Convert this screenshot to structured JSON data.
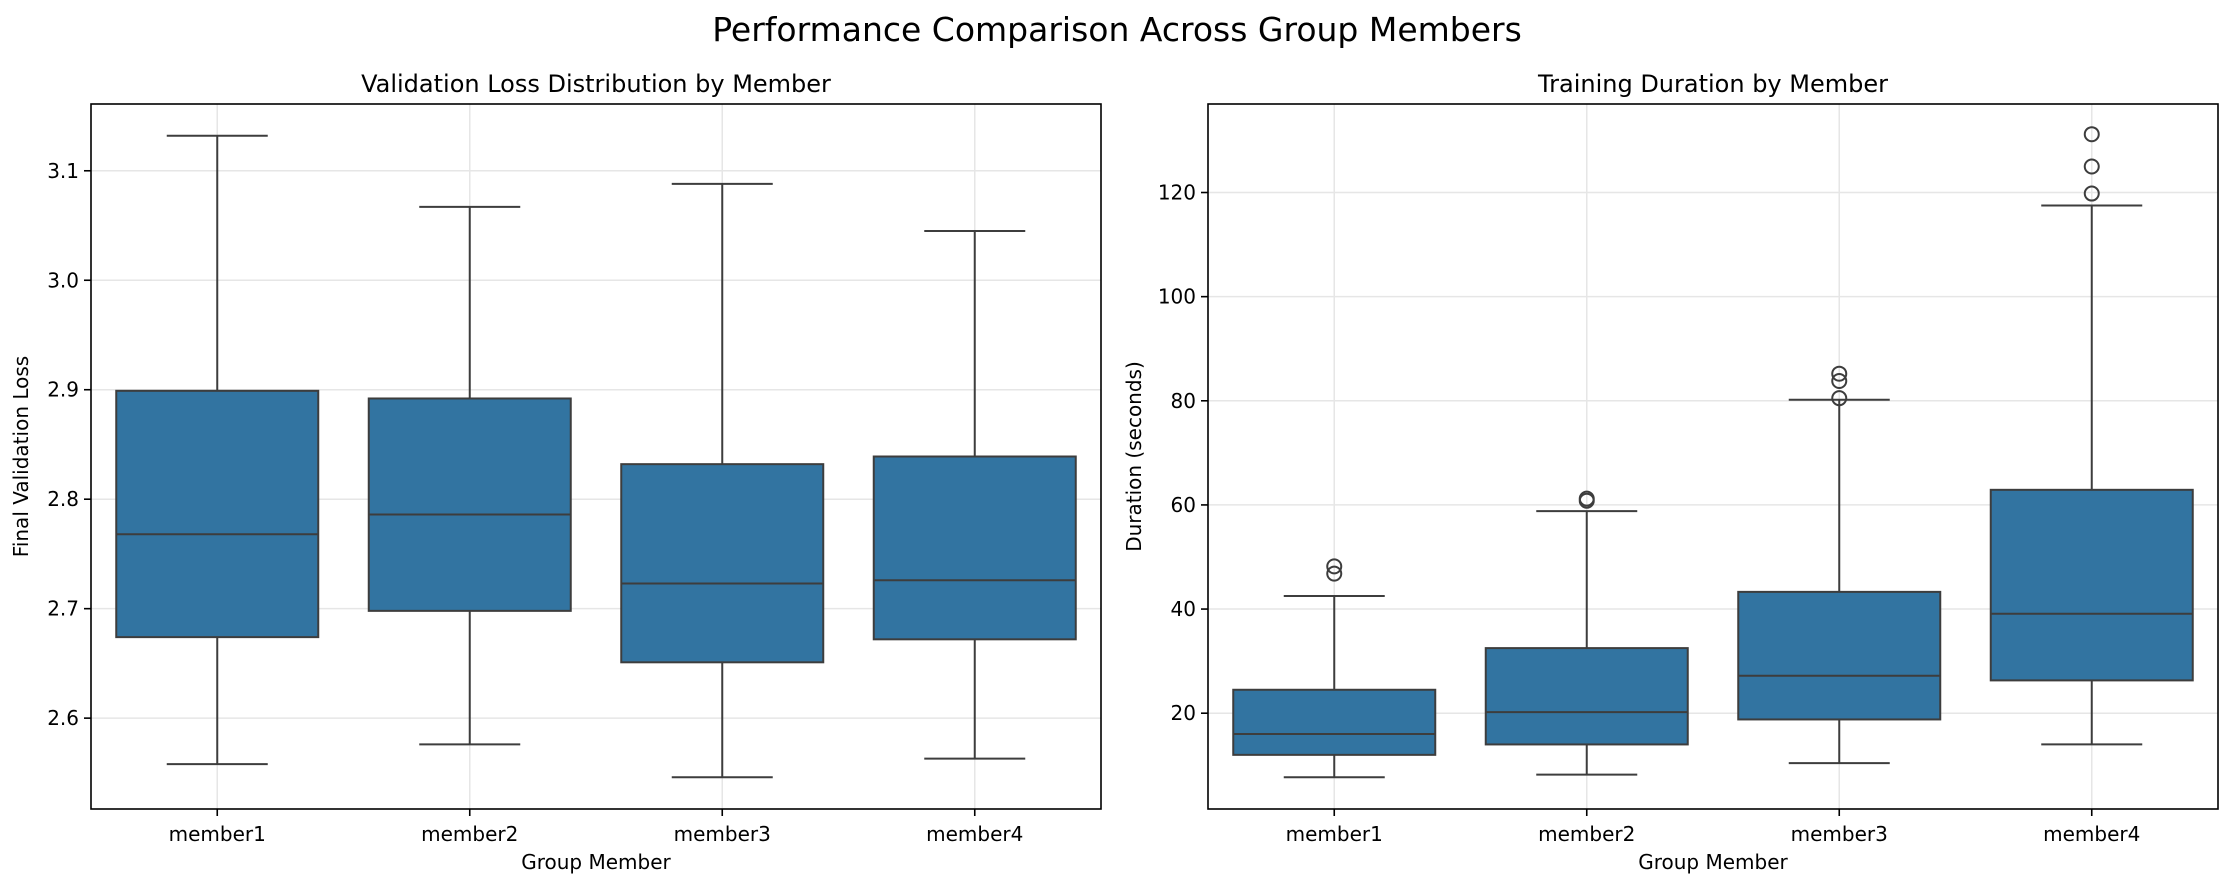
{
  "figure": {
    "title": "Performance Comparison Across Group Members"
  },
  "colors": {
    "box_fill": "#3274a1",
    "line": "#3d3d3d",
    "grid": "#e6e6e6"
  },
  "chart_data": [
    {
      "type": "box",
      "title": "Validation Loss Distribution by Member",
      "xlabel": "Group Member",
      "ylabel": "Final Validation Loss",
      "categories": [
        "member1",
        "member2",
        "member3",
        "member4"
      ],
      "ylim": [
        2.517,
        3.161
      ],
      "yticks": [
        2.6,
        2.7,
        2.8,
        2.9,
        3.0,
        3.1
      ],
      "grid": true,
      "boxes": [
        {
          "whislo": 2.558,
          "q1": 2.674,
          "med": 2.768,
          "q3": 2.899,
          "whishi": 3.132,
          "fliers": []
        },
        {
          "whislo": 2.576,
          "q1": 2.698,
          "med": 2.786,
          "q3": 2.892,
          "whishi": 3.067,
          "fliers": []
        },
        {
          "whislo": 2.546,
          "q1": 2.651,
          "med": 2.723,
          "q3": 2.832,
          "whishi": 3.088,
          "fliers": []
        },
        {
          "whislo": 2.563,
          "q1": 2.672,
          "med": 2.726,
          "q3": 2.839,
          "whishi": 3.045,
          "fliers": []
        }
      ]
    },
    {
      "type": "box",
      "title": "Training Duration by Member",
      "xlabel": "Group Member",
      "ylabel": "Duration (seconds)",
      "categories": [
        "member1",
        "member2",
        "member3",
        "member4"
      ],
      "ylim": [
        1.6,
        137.0
      ],
      "yticks": [
        20,
        40,
        60,
        80,
        100,
        120
      ],
      "grid": true,
      "boxes": [
        {
          "whislo": 7.7,
          "q1": 12.0,
          "med": 16.0,
          "q3": 24.5,
          "whishi": 42.5,
          "fliers": [
            46.8,
            48.2
          ]
        },
        {
          "whislo": 8.2,
          "q1": 14.0,
          "med": 20.2,
          "q3": 32.5,
          "whishi": 58.8,
          "fliers": [
            60.8,
            61.2
          ]
        },
        {
          "whislo": 10.4,
          "q1": 18.8,
          "med": 27.2,
          "q3": 43.3,
          "whishi": 80.2,
          "fliers": [
            80.5,
            83.8,
            85.2
          ]
        },
        {
          "whislo": 14.0,
          "q1": 26.3,
          "med": 39.1,
          "q3": 62.9,
          "whishi": 117.5,
          "fliers": [
            119.8,
            125.0,
            131.2
          ]
        }
      ]
    }
  ]
}
